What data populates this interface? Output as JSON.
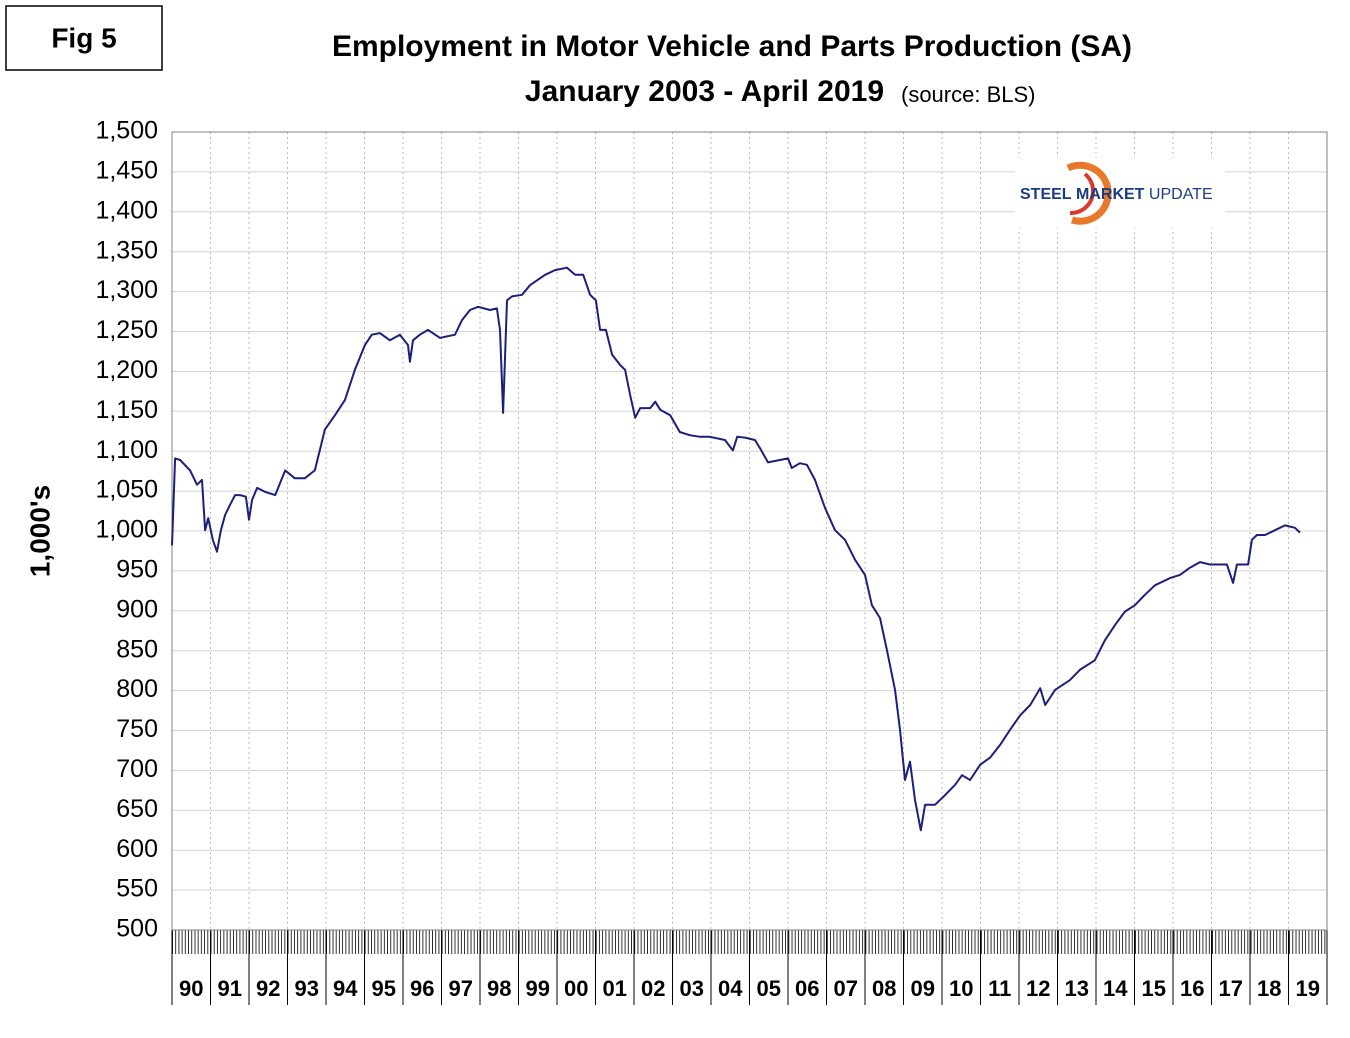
{
  "chart_data": {
    "type": "line",
    "figure_label": "Fig 5",
    "title": "Employment in Motor Vehicle and Parts Production (SA)",
    "subtitle": "January 2003 - April 2019",
    "source": "(source: BLS)",
    "logo": [
      "STEEL",
      "MARKET",
      "UPDATE"
    ],
    "y_label": "1,000's",
    "xlim": [
      1990,
      2020
    ],
    "xticks": [
      {
        "value": 1990,
        "label": "90"
      },
      {
        "value": 1991,
        "label": "91"
      },
      {
        "value": 1992,
        "label": "92"
      },
      {
        "value": 1993,
        "label": "93"
      },
      {
        "value": 1994,
        "label": "94"
      },
      {
        "value": 1995,
        "label": "95"
      },
      {
        "value": 1996,
        "label": "96"
      },
      {
        "value": 1997,
        "label": "97"
      },
      {
        "value": 1998,
        "label": "98"
      },
      {
        "value": 1999,
        "label": "99"
      },
      {
        "value": 2000,
        "label": "00"
      },
      {
        "value": 2001,
        "label": "01"
      },
      {
        "value": 2002,
        "label": "02"
      },
      {
        "value": 2003,
        "label": "03"
      },
      {
        "value": 2004,
        "label": "04"
      },
      {
        "value": 2005,
        "label": "05"
      },
      {
        "value": 2006,
        "label": "06"
      },
      {
        "value": 2007,
        "label": "07"
      },
      {
        "value": 2008,
        "label": "08"
      },
      {
        "value": 2009,
        "label": "09"
      },
      {
        "value": 2010,
        "label": "10"
      },
      {
        "value": 2011,
        "label": "11"
      },
      {
        "value": 2012,
        "label": "12"
      },
      {
        "value": 2013,
        "label": "13"
      },
      {
        "value": 2014,
        "label": "14"
      },
      {
        "value": 2015,
        "label": "15"
      },
      {
        "value": 2016,
        "label": "16"
      },
      {
        "value": 2017,
        "label": "17"
      },
      {
        "value": 2018,
        "label": "18"
      },
      {
        "value": 2019,
        "label": "19"
      }
    ],
    "ylim": [
      500,
      1500
    ],
    "yticks": [
      500,
      550,
      600,
      650,
      700,
      750,
      800,
      850,
      900,
      950,
      {
        "value": 1000,
        "label": "1,000"
      },
      {
        "value": 1050,
        "label": "1,050"
      },
      {
        "value": 1100,
        "label": "1,100"
      },
      {
        "value": 1150,
        "label": "1,150"
      },
      {
        "value": 1200,
        "label": "1,200"
      },
      {
        "value": 1250,
        "label": "1,250"
      },
      {
        "value": 1300,
        "label": "1,300"
      },
      {
        "value": 1350,
        "label": "1,350"
      },
      {
        "value": 1400,
        "label": "1,400"
      },
      {
        "value": 1450,
        "label": "1,450"
      },
      {
        "value": 1500,
        "label": "1,500"
      }
    ],
    "grid": true,
    "color": "#1c1f7c",
    "x": [
      1990.0,
      1990.08,
      1990.21,
      1990.47,
      1990.65,
      1990.78,
      1990.86,
      1990.94,
      1991.06,
      1991.17,
      1991.27,
      1991.38,
      1991.51,
      1991.64,
      1991.77,
      1991.92,
      1992.0,
      1992.08,
      1992.21,
      1992.42,
      1992.68,
      1992.94,
      1993.19,
      1993.45,
      1993.71,
      1993.84,
      1993.97,
      1994.23,
      1994.49,
      1994.75,
      1995.01,
      1995.19,
      1995.4,
      1995.66,
      1995.92,
      1996.13,
      1996.18,
      1996.26,
      1996.44,
      1996.65,
      1996.96,
      1997.35,
      1997.53,
      1997.74,
      1997.95,
      1998.26,
      1998.44,
      1998.52,
      1998.6,
      1998.7,
      1998.83,
      1999.09,
      1999.3,
      1999.69,
      1999.95,
      2000.26,
      2000.47,
      2000.68,
      2000.86,
      2001.01,
      2001.12,
      2001.27,
      2001.43,
      2001.64,
      2001.77,
      2001.9,
      2002.03,
      2002.16,
      2002.42,
      2002.55,
      2002.68,
      2002.94,
      2003.19,
      2003.45,
      2003.71,
      2003.97,
      2004.36,
      2004.57,
      2004.68,
      2004.88,
      2005.14,
      2005.27,
      2005.48,
      2005.79,
      2006.0,
      2006.1,
      2006.31,
      2006.49,
      2006.7,
      2006.96,
      2007.22,
      2007.48,
      2007.74,
      2008.0,
      2008.18,
      2008.39,
      2008.57,
      2008.78,
      2008.91,
      2009.04,
      2009.17,
      2009.3,
      2009.45,
      2009.56,
      2009.82,
      2010.08,
      2010.34,
      2010.52,
      2010.73,
      2010.99,
      2011.25,
      2011.51,
      2011.77,
      2012.03,
      2012.29,
      2012.55,
      2012.68,
      2012.94,
      2013.32,
      2013.58,
      2013.97,
      2014.23,
      2014.49,
      2014.75,
      2015.01,
      2015.27,
      2015.53,
      2015.92,
      2016.18,
      2016.44,
      2016.7,
      2016.96,
      2017.4,
      2017.56,
      2017.66,
      2017.95,
      2018.05,
      2018.18,
      2018.39,
      2018.65,
      2018.91,
      2019.17,
      2019.3
    ],
    "values": [
      982,
      1091,
      1089,
      1076,
      1058,
      1064,
      1001,
      1016,
      989,
      974,
      1001,
      1020,
      1033,
      1045,
      1045,
      1043,
      1014,
      1039,
      1054,
      1049,
      1045,
      1076,
      1066,
      1066,
      1076,
      1101,
      1127,
      1145,
      1164,
      1202,
      1233,
      1246,
      1248,
      1239,
      1246,
      1233,
      1212,
      1239,
      1246,
      1252,
      1242,
      1246,
      1264,
      1277,
      1281,
      1277,
      1279,
      1252,
      1148,
      1289,
      1294,
      1296,
      1308,
      1321,
      1327,
      1330,
      1321,
      1321,
      1296,
      1289,
      1252,
      1252,
      1221,
      1208,
      1202,
      1170,
      1142,
      1154,
      1154,
      1162,
      1152,
      1145,
      1124,
      1120,
      1118,
      1118,
      1114,
      1101,
      1118,
      1117,
      1114,
      1104,
      1086,
      1089,
      1091,
      1079,
      1085,
      1083,
      1064,
      1029,
      1001,
      989,
      964,
      945,
      907,
      891,
      851,
      801,
      751,
      688,
      711,
      663,
      625,
      657,
      657,
      669,
      682,
      694,
      688,
      707,
      716,
      732,
      751,
      769,
      782,
      803,
      782,
      801,
      813,
      826,
      838,
      863,
      882,
      899,
      907,
      920,
      932,
      941,
      945,
      954,
      961,
      958,
      958,
      935,
      958,
      958,
      989,
      995,
      995,
      1001,
      1007,
      1004,
      998
    ]
  }
}
